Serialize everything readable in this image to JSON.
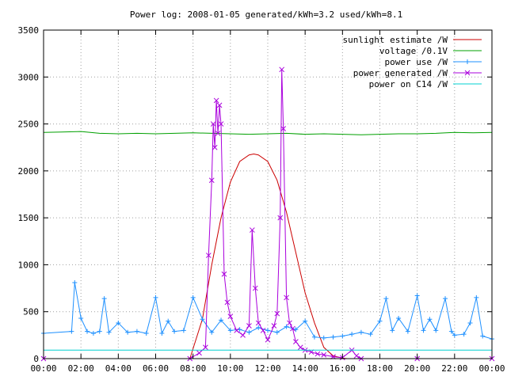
{
  "chart_data": {
    "type": "line",
    "title": "Power log: 2008-01-05 generated/kWh=3.2 used/kWh=8.1",
    "xlabel": "",
    "ylabel": "",
    "xlim": [
      "00:00",
      "24:00"
    ],
    "ylim": [
      0,
      3500
    ],
    "x_ticks": [
      "00:00",
      "02:00",
      "04:00",
      "06:00",
      "08:00",
      "10:00",
      "12:00",
      "14:00",
      "16:00",
      "18:00",
      "20:00",
      "22:00",
      "00:00"
    ],
    "y_ticks": [
      0,
      500,
      1000,
      1500,
      2000,
      2500,
      3000,
      3500
    ],
    "grid": true,
    "legend_position": "top-right",
    "colors": {
      "sunlight": "#cc0000",
      "voltage": "#00a000",
      "power_use": "#1e90ff",
      "power_generated": "#aa00dd",
      "power_c14": "#00d0d0"
    },
    "series": [
      {
        "name": "sunlight estimate /W",
        "key": "sunlight",
        "marker": "none",
        "x": [
          "07:50",
          "08:30",
          "09:00",
          "09:30",
          "10:00",
          "10:30",
          "11:00",
          "11:15",
          "11:30",
          "12:00",
          "12:30",
          "13:00",
          "13:30",
          "14:00",
          "14:30",
          "15:00",
          "15:30",
          "16:00",
          "16:15"
        ],
        "y": [
          0,
          420,
          1000,
          1500,
          1880,
          2100,
          2170,
          2180,
          2170,
          2100,
          1900,
          1560,
          1130,
          700,
          380,
          120,
          30,
          5,
          0
        ]
      },
      {
        "name": "voltage /0.1V",
        "key": "voltage",
        "marker": "none",
        "x": [
          "00:00",
          "01:00",
          "02:00",
          "03:00",
          "04:00",
          "05:00",
          "06:00",
          "07:00",
          "08:00",
          "09:00",
          "10:00",
          "11:00",
          "12:00",
          "13:00",
          "14:00",
          "15:00",
          "16:00",
          "17:00",
          "18:00",
          "19:00",
          "20:00",
          "21:00",
          "22:00",
          "23:00",
          "24:00"
        ],
        "y": [
          2410,
          2415,
          2420,
          2400,
          2395,
          2400,
          2395,
          2400,
          2405,
          2400,
          2395,
          2390,
          2395,
          2400,
          2390,
          2395,
          2390,
          2385,
          2390,
          2395,
          2395,
          2400,
          2410,
          2405,
          2410
        ]
      },
      {
        "name": "power use /W",
        "key": "power_use",
        "marker": "plus",
        "x": [
          "00:00",
          "01:30",
          "01:40",
          "02:00",
          "02:20",
          "02:40",
          "03:00",
          "03:15",
          "03:30",
          "04:00",
          "04:30",
          "05:00",
          "05:30",
          "06:00",
          "06:20",
          "06:40",
          "07:00",
          "07:30",
          "08:00",
          "08:30",
          "09:00",
          "09:30",
          "10:00",
          "10:30",
          "11:00",
          "11:30",
          "12:00",
          "12:30",
          "13:00",
          "13:30",
          "14:00",
          "14:30",
          "15:00",
          "15:30",
          "16:00",
          "16:30",
          "17:00",
          "17:30",
          "18:00",
          "18:20",
          "18:40",
          "19:00",
          "19:30",
          "20:00",
          "20:20",
          "20:40",
          "21:00",
          "21:30",
          "21:50",
          "22:00",
          "22:30",
          "22:50",
          "23:10",
          "23:30",
          "24:00"
        ],
        "y": [
          270,
          290,
          810,
          430,
          290,
          270,
          290,
          640,
          280,
          380,
          280,
          290,
          270,
          650,
          270,
          400,
          290,
          300,
          650,
          420,
          280,
          410,
          300,
          310,
          280,
          330,
          300,
          280,
          340,
          310,
          400,
          230,
          220,
          230,
          240,
          260,
          280,
          260,
          400,
          640,
          300,
          430,
          290,
          670,
          300,
          420,
          300,
          640,
          290,
          250,
          260,
          380,
          650,
          240,
          210
        ]
      },
      {
        "name": "power generated /W",
        "key": "power_generated",
        "marker": "cross",
        "x": [
          "00:00",
          "07:50",
          "08:20",
          "08:40",
          "08:50",
          "09:00",
          "09:05",
          "09:10",
          "09:15",
          "09:20",
          "09:25",
          "09:30",
          "09:40",
          "09:50",
          "10:00",
          "10:20",
          "10:40",
          "11:00",
          "11:10",
          "11:20",
          "11:30",
          "11:45",
          "12:00",
          "12:20",
          "12:30",
          "12:40",
          "12:45",
          "12:50",
          "13:00",
          "13:10",
          "13:20",
          "13:30",
          "13:45",
          "14:00",
          "14:20",
          "14:40",
          "15:00",
          "15:30",
          "16:00",
          "16:30",
          "16:45",
          "17:00",
          "20:00",
          "24:00"
        ],
        "y": [
          0,
          0,
          60,
          120,
          1100,
          1900,
          2500,
          2250,
          2750,
          2400,
          2700,
          2500,
          900,
          600,
          450,
          300,
          250,
          350,
          1370,
          750,
          380,
          300,
          200,
          350,
          480,
          1500,
          3080,
          2450,
          650,
          380,
          320,
          180,
          120,
          90,
          70,
          50,
          40,
          20,
          10,
          90,
          30,
          0,
          0,
          0
        ]
      },
      {
        "name": "power on C14 /W",
        "key": "power_c14",
        "marker": "none",
        "x": [
          "00:00",
          "06:00",
          "12:00",
          "18:00",
          "24:00"
        ],
        "y": [
          90,
          90,
          90,
          90,
          90
        ]
      }
    ]
  }
}
